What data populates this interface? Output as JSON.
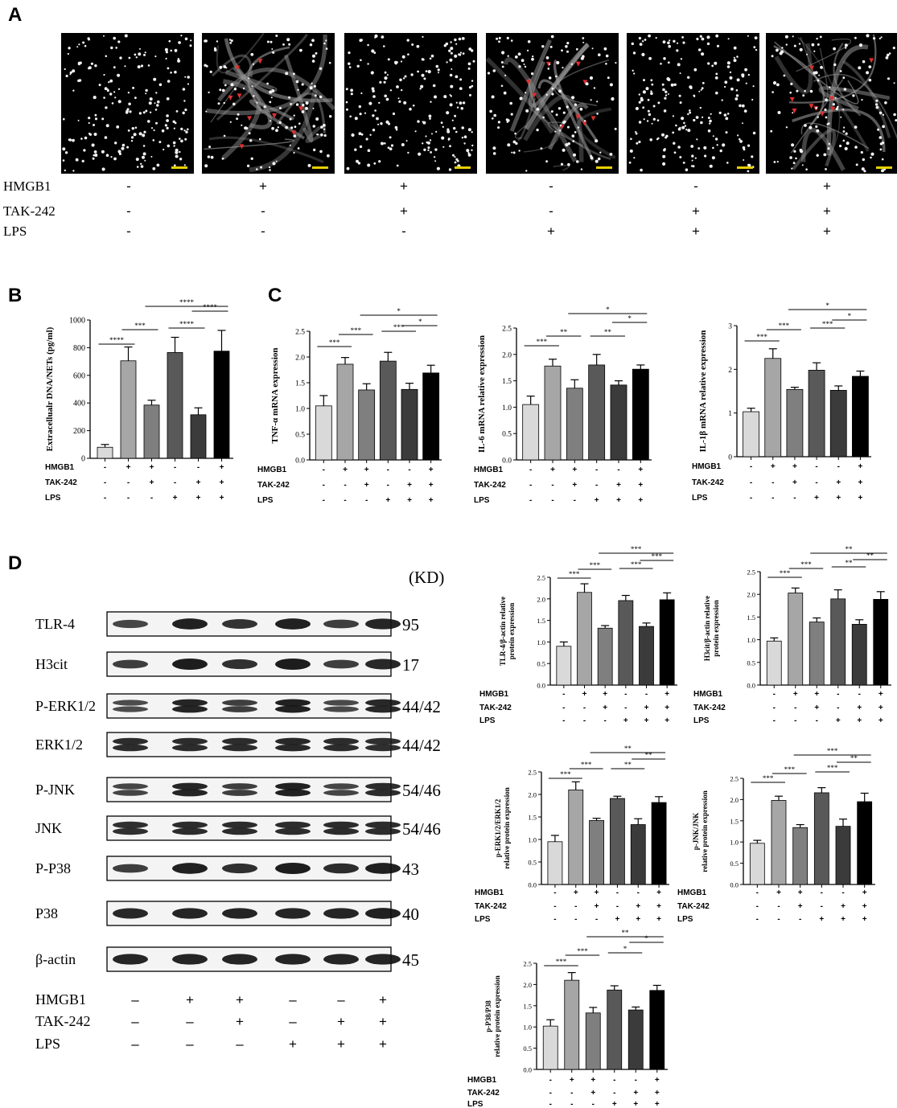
{
  "panels": {
    "A": "A",
    "B": "B",
    "C": "C",
    "D": "D"
  },
  "colors": {
    "bars": [
      "#d9d9d9",
      "#a6a6a6",
      "#7f7f7f",
      "#595959",
      "#3b3b3b",
      "#000000"
    ],
    "scale_bar": "#e8d000",
    "arrowheads": "#e03030",
    "micrograph_bg": "#000000"
  },
  "panelA": {
    "image_icons": [
      "micrograph-1",
      "micrograph-2",
      "micrograph-3",
      "micrograph-4",
      "micrograph-5",
      "micrograph-6"
    ],
    "rows": [
      {
        "label": "HMGB1",
        "signs": [
          "-",
          "+",
          "+",
          "-",
          "-",
          "+"
        ]
      },
      {
        "label": "TAK-242",
        "signs": [
          "-",
          "-",
          "+",
          "-",
          "+",
          "+"
        ]
      },
      {
        "label": "LPS",
        "signs": [
          "-",
          "-",
          "-",
          "+",
          "+",
          "+"
        ]
      }
    ]
  },
  "conditions": {
    "labels": [
      "HMGB1",
      "TAK-242",
      "LPS"
    ],
    "signs": [
      [
        "-",
        "+",
        "+",
        "-",
        "-",
        "+"
      ],
      [
        "-",
        "-",
        "+",
        "-",
        "+",
        "+"
      ],
      [
        "-",
        "-",
        "-",
        "+",
        "+",
        "+"
      ]
    ]
  },
  "wb": {
    "kd_header": "(KD)",
    "rows": [
      {
        "label": "TLR-4",
        "kd": "95",
        "bands": 1
      },
      {
        "label": "H3cit",
        "kd": "17",
        "bands": 1
      },
      {
        "label": "P-ERK1/2",
        "kd": "44/42",
        "bands": 2
      },
      {
        "label": "ERK1/2",
        "kd": "44/42",
        "bands": 2
      },
      {
        "label": "P-JNK",
        "kd": "54/46",
        "bands": 2
      },
      {
        "label": "JNK",
        "kd": "54/46",
        "bands": 2
      },
      {
        "label": "P-P38",
        "kd": "43",
        "bands": 1
      },
      {
        "label": "P38",
        "kd": "40",
        "bands": 1
      },
      {
        "label": "β-actin",
        "kd": "45",
        "bands": 1
      }
    ],
    "conditions": [
      {
        "label": "HMGB1",
        "signs": [
          "–",
          "+",
          "+",
          "–",
          "–",
          "+"
        ]
      },
      {
        "label": "TAK-242",
        "signs": [
          "–",
          "–",
          "+",
          "–",
          "+",
          "+"
        ]
      },
      {
        "label": "LPS",
        "signs": [
          "–",
          "–",
          "–",
          "+",
          "+",
          "+"
        ]
      }
    ]
  },
  "chart_data": [
    {
      "id": "B",
      "type": "bar",
      "ylabel": "Extracellualr DNA/NETs (pg/ml)",
      "ylim": [
        0,
        1000
      ],
      "yticks": [
        0,
        200,
        400,
        600,
        800,
        1000
      ],
      "values": [
        80,
        705,
        385,
        765,
        315,
        775
      ],
      "errors": [
        20,
        100,
        35,
        110,
        50,
        150
      ],
      "sig": [
        {
          "a": 0,
          "b": 1,
          "label": "****"
        },
        {
          "a": 1,
          "b": 2,
          "label": "***"
        },
        {
          "a": 3,
          "b": 4,
          "label": "****"
        },
        {
          "a": 4,
          "b": 5,
          "label": "****"
        },
        {
          "a": 2,
          "b": 5,
          "label": "****"
        }
      ]
    },
    {
      "id": "C1",
      "type": "bar",
      "ylabel": "TNF-α mRNA expression",
      "ylim": [
        0,
        2.5
      ],
      "yticks": [
        0.0,
        0.5,
        1.0,
        1.5,
        2.0,
        2.5
      ],
      "values": [
        1.05,
        1.86,
        1.36,
        1.92,
        1.37,
        1.69
      ],
      "errors": [
        0.2,
        0.13,
        0.12,
        0.17,
        0.12,
        0.15
      ],
      "sig": [
        {
          "a": 0,
          "b": 1,
          "label": "***"
        },
        {
          "a": 1,
          "b": 2,
          "label": "***"
        },
        {
          "a": 3,
          "b": 4,
          "label": "***"
        },
        {
          "a": 4,
          "b": 5,
          "label": "*"
        },
        {
          "a": 2,
          "b": 5,
          "label": "*"
        }
      ]
    },
    {
      "id": "C2",
      "type": "bar",
      "ylabel": "IL-6 mRNA relative  expression",
      "ylim": [
        0,
        2.5
      ],
      "yticks": [
        0.0,
        0.5,
        1.0,
        1.5,
        2.0,
        2.5
      ],
      "values": [
        1.05,
        1.78,
        1.36,
        1.8,
        1.42,
        1.72
      ],
      "errors": [
        0.16,
        0.13,
        0.16,
        0.2,
        0.08,
        0.08
      ],
      "sig": [
        {
          "a": 0,
          "b": 1,
          "label": "***"
        },
        {
          "a": 1,
          "b": 2,
          "label": "**"
        },
        {
          "a": 3,
          "b": 4,
          "label": "**"
        },
        {
          "a": 4,
          "b": 5,
          "label": "*"
        },
        {
          "a": 2,
          "b": 5,
          "label": "*"
        }
      ]
    },
    {
      "id": "C3",
      "type": "bar",
      "ylabel": "IL-1β mRNA relative  expression",
      "ylim": [
        0,
        3
      ],
      "yticks": [
        0,
        1,
        2,
        3
      ],
      "values": [
        1.03,
        2.25,
        1.54,
        1.98,
        1.52,
        1.84
      ],
      "errors": [
        0.08,
        0.22,
        0.05,
        0.17,
        0.1,
        0.12
      ],
      "sig": [
        {
          "a": 0,
          "b": 1,
          "label": "***"
        },
        {
          "a": 1,
          "b": 2,
          "label": "***"
        },
        {
          "a": 3,
          "b": 4,
          "label": "***"
        },
        {
          "a": 4,
          "b": 5,
          "label": "*"
        },
        {
          "a": 2,
          "b": 5,
          "label": "*"
        }
      ]
    },
    {
      "id": "D1",
      "type": "bar",
      "ylabel": [
        "TLR-4/β-actin relative",
        "protein expression"
      ],
      "ylim": [
        0,
        2.5
      ],
      "yticks": [
        0.0,
        0.5,
        1.0,
        1.5,
        2.0,
        2.5
      ],
      "values": [
        0.9,
        2.15,
        1.32,
        1.96,
        1.36,
        1.98
      ],
      "errors": [
        0.1,
        0.2,
        0.06,
        0.12,
        0.08,
        0.16
      ],
      "sig": [
        {
          "a": 0,
          "b": 1,
          "label": "***"
        },
        {
          "a": 1,
          "b": 2,
          "label": "***"
        },
        {
          "a": 3,
          "b": 4,
          "label": "***"
        },
        {
          "a": 4,
          "b": 5,
          "label": "***"
        },
        {
          "a": 2,
          "b": 5,
          "label": "***"
        }
      ]
    },
    {
      "id": "D2",
      "type": "bar",
      "ylabel": [
        "H3cit/β-actin relative",
        "protein expression"
      ],
      "ylim": [
        0,
        2.5
      ],
      "yticks": [
        0.0,
        0.5,
        1.0,
        1.5,
        2.0,
        2.5
      ],
      "values": [
        0.97,
        2.03,
        1.39,
        1.9,
        1.34,
        1.89
      ],
      "errors": [
        0.07,
        0.11,
        0.09,
        0.2,
        0.1,
        0.17
      ],
      "sig": [
        {
          "a": 0,
          "b": 1,
          "label": "***"
        },
        {
          "a": 1,
          "b": 2,
          "label": "***"
        },
        {
          "a": 3,
          "b": 4,
          "label": "**"
        },
        {
          "a": 4,
          "b": 5,
          "label": "**"
        },
        {
          "a": 2,
          "b": 5,
          "label": "**"
        }
      ]
    },
    {
      "id": "D3",
      "type": "bar",
      "ylabel": [
        "p-ERK1/2/ERK1/2",
        "relative protein expression"
      ],
      "ylim": [
        0,
        2.5
      ],
      "yticks": [
        0.0,
        0.5,
        1.0,
        1.5,
        2.0,
        2.5
      ],
      "values": [
        0.95,
        2.1,
        1.42,
        1.91,
        1.33,
        1.82
      ],
      "errors": [
        0.14,
        0.18,
        0.05,
        0.05,
        0.13,
        0.13
      ],
      "sig": [
        {
          "a": 0,
          "b": 1,
          "label": "***"
        },
        {
          "a": 1,
          "b": 2,
          "label": "***"
        },
        {
          "a": 3,
          "b": 4,
          "label": "**"
        },
        {
          "a": 4,
          "b": 5,
          "label": "**"
        },
        {
          "a": 2,
          "b": 5,
          "label": "**"
        }
      ]
    },
    {
      "id": "D4",
      "type": "bar",
      "ylabel": [
        "p-JNK/JNK",
        "relative protein expression"
      ],
      "ylim": [
        0,
        2.5
      ],
      "yticks": [
        0.0,
        0.5,
        1.0,
        1.5,
        2.0,
        2.5
      ],
      "values": [
        0.97,
        1.98,
        1.34,
        2.16,
        1.37,
        1.95
      ],
      "errors": [
        0.07,
        0.1,
        0.07,
        0.12,
        0.17,
        0.2
      ],
      "sig": [
        {
          "a": 0,
          "b": 1,
          "label": "***"
        },
        {
          "a": 1,
          "b": 2,
          "label": "***"
        },
        {
          "a": 3,
          "b": 4,
          "label": "***"
        },
        {
          "a": 4,
          "b": 5,
          "label": "**"
        },
        {
          "a": 2,
          "b": 5,
          "label": "***"
        }
      ]
    },
    {
      "id": "D5",
      "type": "bar",
      "ylabel": [
        "p-P38/P38",
        "relative protein expression"
      ],
      "ylim": [
        0,
        2.5
      ],
      "yticks": [
        0.0,
        0.5,
        1.0,
        1.5,
        2.0,
        2.5
      ],
      "values": [
        1.02,
        2.1,
        1.33,
        1.87,
        1.4,
        1.86
      ],
      "errors": [
        0.15,
        0.18,
        0.13,
        0.1,
        0.07,
        0.12
      ],
      "sig": [
        {
          "a": 0,
          "b": 1,
          "label": "***"
        },
        {
          "a": 1,
          "b": 2,
          "label": "***"
        },
        {
          "a": 3,
          "b": 4,
          "label": "*"
        },
        {
          "a": 4,
          "b": 5,
          "label": "*"
        },
        {
          "a": 2,
          "b": 5,
          "label": "**"
        }
      ]
    }
  ]
}
